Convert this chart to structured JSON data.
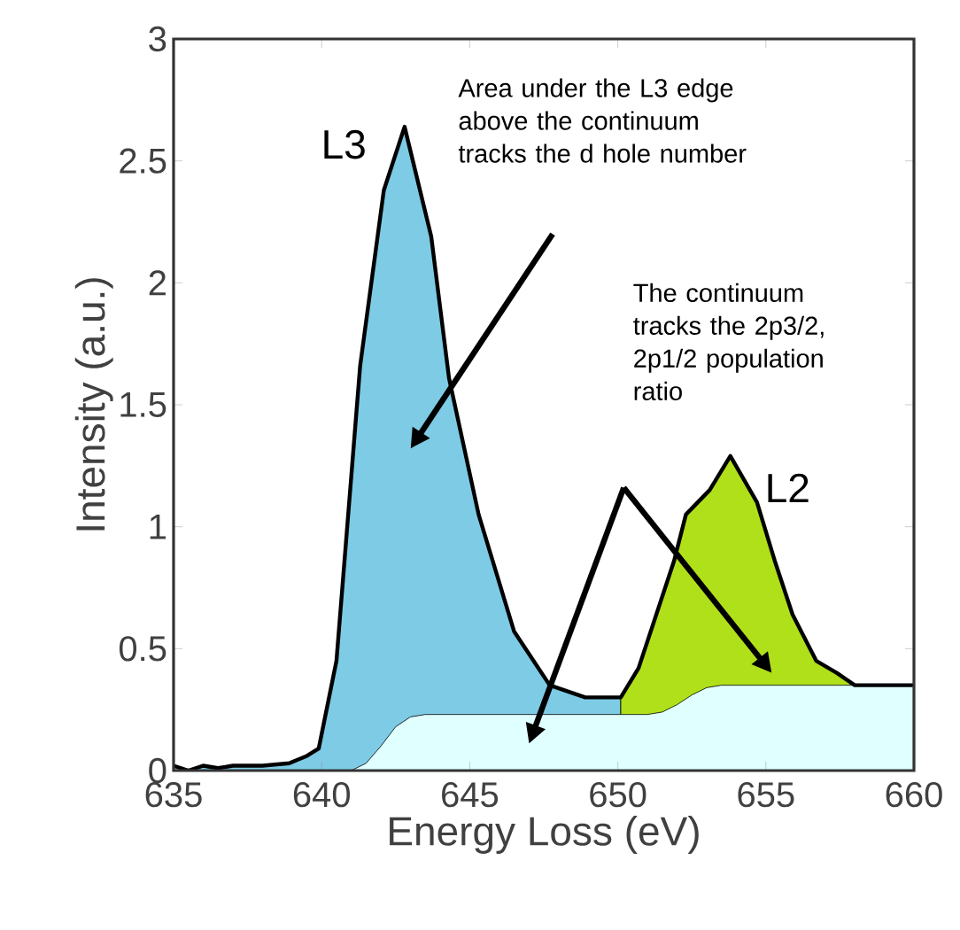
{
  "chart_data": {
    "type": "line",
    "xlabel": "Energy Loss (eV)",
    "ylabel": "Intensity (a.u.)",
    "xlim": [
      635,
      660
    ],
    "ylim": [
      0,
      3
    ],
    "xticks": [
      635,
      640,
      645,
      650,
      655,
      660
    ],
    "yticks": [
      0,
      0.5,
      1,
      1.5,
      2,
      2.5,
      3
    ],
    "grid": false,
    "marker": "none",
    "line_style": "solid",
    "series": [
      {
        "type": "area",
        "color": "#7ecbe6",
        "x": [
          635,
          635.5,
          636,
          636.5,
          637,
          638,
          638.9,
          639.5,
          639.9,
          640.5,
          641.3,
          642.1,
          642.8,
          643.7,
          644.3,
          645.3,
          646.5,
          647.7,
          648.9,
          650.1
        ],
        "values": [
          0.02,
          0.0,
          0.02,
          0.01,
          0.02,
          0.02,
          0.03,
          0.06,
          0.09,
          0.45,
          1.66,
          2.38,
          2.64,
          2.19,
          1.61,
          1.05,
          0.57,
          0.35,
          0.3,
          0.3
        ]
      },
      {
        "type": "area",
        "color": "#b0e01a",
        "x": [
          650.1,
          650.7,
          651.9,
          652.3,
          653.1,
          653.8,
          654.7,
          655.3,
          655.9,
          656.7,
          657.4,
          658.0,
          660
        ],
        "values": [
          0.3,
          0.42,
          0.86,
          1.05,
          1.15,
          1.29,
          1.1,
          0.86,
          0.64,
          0.45,
          0.4,
          0.35,
          0.35
        ]
      },
      {
        "type": "area",
        "color": "#e0ffff",
        "x": [
          635,
          641,
          641.5,
          642,
          642.5,
          643,
          643.5,
          651,
          651.5,
          652,
          652.5,
          653,
          653.5,
          660
        ],
        "values": [
          0,
          0,
          0.03,
          0.1,
          0.18,
          0.22,
          0.23,
          0.23,
          0.24,
          0.27,
          0.31,
          0.34,
          0.35,
          0.35
        ]
      },
      {
        "color": "#000000",
        "x": [
          635,
          635.5,
          636,
          636.5,
          637,
          638,
          638.9,
          639.5,
          639.9,
          640.5,
          641.3,
          642.1,
          642.8,
          643.7,
          644.3,
          645.3,
          646.5,
          647.7,
          648.9,
          650.1,
          650.7,
          651.9,
          652.3,
          653.1,
          653.8,
          654.7,
          655.3,
          655.9,
          656.7,
          657.4,
          658.0,
          660
        ],
        "values": [
          0.02,
          0.0,
          0.02,
          0.01,
          0.02,
          0.02,
          0.03,
          0.06,
          0.09,
          0.45,
          1.66,
          2.38,
          2.64,
          2.19,
          1.61,
          1.05,
          0.57,
          0.35,
          0.3,
          0.3,
          0.42,
          0.86,
          1.05,
          1.15,
          1.29,
          1.1,
          0.86,
          0.64,
          0.45,
          0.4,
          0.35,
          0.35
        ]
      }
    ],
    "annotations": [
      {
        "text": "L3",
        "x": 642.8,
        "y": 2.64
      },
      {
        "text": "L2",
        "x": 653.8,
        "y": 1.29
      },
      "Area under the L3 edge above the continuum tracks the d hole number",
      "The continuum tracks the 2p3/2, 2p1/2 population ratio"
    ]
  }
}
